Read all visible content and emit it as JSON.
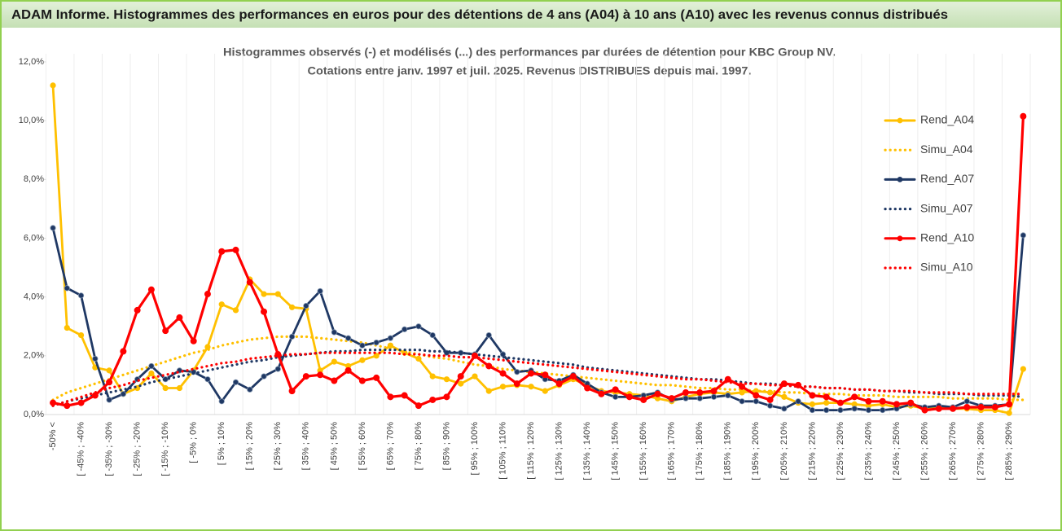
{
  "chart_data": {
    "type": "line",
    "title": "ADAM Informe. Histogrammes des performances en euros pour des détentions de 4 ans (A04) à 10 ans (A10) avec les revenus connus distribués",
    "subtitle": [
      "Histogrammes observés (-) et modélisés (...) des performances par durées de détention pour KBC Group NV.",
      "Cotations entre janv. 1997 et juil. 2025. Revenus DISTRIBUES depuis mai. 1997."
    ],
    "categories": [
      "-50% <",
      null,
      "[ -45% ; -40%",
      null,
      "[ -35% ; -30%",
      null,
      "[ -25% ; -20%",
      null,
      "[ -15% ; -10%",
      null,
      "[ -5% ; 0%",
      null,
      "[ 5% ; 10%",
      null,
      "[ 15% ; 20%",
      null,
      "[ 25% ; 30%",
      null,
      "[ 35% ; 40%",
      null,
      "[ 45% ; 50%",
      null,
      "[ 55% ; 60%",
      null,
      "[ 65% ; 70%",
      null,
      "[ 75% ; 80%",
      null,
      "[ 85% ; 90%",
      null,
      "[ 95% ; 100%",
      null,
      "[ 105% ; 110%",
      null,
      "[ 115% ; 120%",
      null,
      "[ 125% ; 130%",
      null,
      "[ 135% ; 140%",
      null,
      "[ 145% ; 150%",
      null,
      "[ 155% ; 160%",
      null,
      "[ 165% ; 170%",
      null,
      "[ 175% ; 180%",
      null,
      "[ 185% ; 190%",
      null,
      "[ 195% ; 200%",
      null,
      "[ 205% ; 210%",
      null,
      "[ 215% ; 220%",
      null,
      "[ 225% ; 230%",
      null,
      "[ 235% ; 240%",
      null,
      "[ 245% ; 250%",
      null,
      "[ 255% ; 260%",
      null,
      "[ 265% ; 270%",
      null,
      "[ 275% ; 280%",
      null,
      "[ 285% ; 290%",
      null
    ],
    "series": [
      {
        "name": "Rend_A04",
        "color": "#FFC000",
        "style": "solid",
        "marker": true,
        "values": [
          11.2,
          2.95,
          2.7,
          1.6,
          1.5,
          0.7,
          0.9,
          1.4,
          0.9,
          0.9,
          1.5,
          2.3,
          3.75,
          3.55,
          4.6,
          4.1,
          4.1,
          3.65,
          3.6,
          1.5,
          1.8,
          1.65,
          1.85,
          2.0,
          2.35,
          2.1,
          1.9,
          1.3,
          1.2,
          1.05,
          1.3,
          0.8,
          0.95,
          1.0,
          0.95,
          0.8,
          1.0,
          1.2,
          1.0,
          0.8,
          0.75,
          0.7,
          0.65,
          0.55,
          0.45,
          0.6,
          0.7,
          0.75,
          0.7,
          0.75,
          0.8,
          0.75,
          0.6,
          0.4,
          0.35,
          0.4,
          0.4,
          0.35,
          0.3,
          0.35,
          0.25,
          0.3,
          0.2,
          0.25,
          0.2,
          0.2,
          0.15,
          0.15,
          0.05,
          1.55
        ]
      },
      {
        "name": "Simu_A04",
        "color": "#FFC000",
        "style": "dotted",
        "marker": false,
        "values": [
          0.5,
          0.75,
          0.9,
          1.05,
          1.2,
          1.35,
          1.5,
          1.65,
          1.8,
          1.95,
          2.1,
          2.2,
          2.35,
          2.45,
          2.55,
          2.6,
          2.65,
          2.65,
          2.65,
          2.6,
          2.55,
          2.5,
          2.45,
          2.35,
          2.25,
          2.15,
          2.05,
          1.95,
          1.9,
          1.8,
          1.7,
          1.65,
          1.55,
          1.5,
          1.45,
          1.4,
          1.35,
          1.3,
          1.25,
          1.2,
          1.15,
          1.1,
          1.05,
          1.0,
          1.0,
          0.95,
          0.9,
          0.9,
          0.85,
          0.85,
          0.8,
          0.8,
          0.75,
          0.75,
          0.7,
          0.7,
          0.7,
          0.65,
          0.65,
          0.65,
          0.6,
          0.6,
          0.6,
          0.6,
          0.55,
          0.55,
          0.55,
          0.55,
          0.5,
          0.5
        ]
      },
      {
        "name": "Rend_A07",
        "color": "#1F3864",
        "style": "solid",
        "marker": true,
        "values": [
          6.35,
          4.3,
          4.05,
          1.9,
          0.5,
          0.7,
          1.2,
          1.65,
          1.2,
          1.5,
          1.45,
          1.2,
          0.45,
          1.1,
          0.85,
          1.3,
          1.55,
          2.65,
          3.7,
          4.2,
          2.8,
          2.6,
          2.35,
          2.45,
          2.6,
          2.9,
          3.0,
          2.7,
          2.1,
          2.1,
          2.05,
          2.7,
          2.05,
          1.45,
          1.5,
          1.2,
          1.15,
          1.35,
          1.05,
          0.75,
          0.6,
          0.6,
          0.65,
          0.75,
          0.5,
          0.55,
          0.55,
          0.6,
          0.65,
          0.45,
          0.45,
          0.3,
          0.2,
          0.45,
          0.15,
          0.15,
          0.15,
          0.2,
          0.15,
          0.15,
          0.2,
          0.35,
          0.25,
          0.3,
          0.25,
          0.45,
          0.3,
          0.3,
          0.35,
          6.1
        ]
      },
      {
        "name": "Simu_A07",
        "color": "#1F3864",
        "style": "dotted",
        "marker": false,
        "values": [
          0.3,
          0.45,
          0.55,
          0.65,
          0.75,
          0.85,
          0.95,
          1.1,
          1.2,
          1.3,
          1.4,
          1.5,
          1.6,
          1.7,
          1.8,
          1.85,
          1.95,
          2.0,
          2.05,
          2.1,
          2.15,
          2.15,
          2.2,
          2.2,
          2.2,
          2.2,
          2.2,
          2.15,
          2.15,
          2.1,
          2.05,
          2.0,
          1.95,
          1.9,
          1.85,
          1.8,
          1.75,
          1.7,
          1.6,
          1.55,
          1.5,
          1.45,
          1.4,
          1.35,
          1.3,
          1.25,
          1.2,
          1.2,
          1.15,
          1.1,
          1.05,
          1.05,
          1.0,
          0.95,
          0.95,
          0.9,
          0.9,
          0.85,
          0.85,
          0.8,
          0.8,
          0.75,
          0.75,
          0.7,
          0.7,
          0.7,
          0.65,
          0.65,
          0.65,
          0.6
        ]
      },
      {
        "name": "Rend_A10",
        "color": "#FF0000",
        "style": "solid",
        "marker": true,
        "values": [
          0.4,
          0.3,
          0.4,
          0.65,
          1.1,
          2.15,
          3.55,
          4.25,
          2.85,
          3.3,
          2.5,
          4.1,
          5.55,
          5.6,
          4.5,
          3.5,
          2.05,
          0.8,
          1.3,
          1.35,
          1.15,
          1.5,
          1.15,
          1.25,
          0.6,
          0.65,
          0.3,
          0.5,
          0.6,
          1.3,
          2.0,
          1.65,
          1.4,
          1.05,
          1.4,
          1.35,
          1.05,
          1.3,
          0.9,
          0.7,
          0.85,
          0.6,
          0.5,
          0.7,
          0.55,
          0.75,
          0.75,
          0.8,
          1.2,
          0.95,
          0.65,
          0.5,
          1.05,
          1.0,
          0.65,
          0.6,
          0.4,
          0.6,
          0.45,
          0.45,
          0.35,
          0.4,
          0.15,
          0.2,
          0.2,
          0.25,
          0.25,
          0.25,
          0.35,
          10.15
        ]
      },
      {
        "name": "Simu_A10",
        "color": "#FF0000",
        "style": "dotted",
        "marker": false,
        "values": [
          0.3,
          0.45,
          0.6,
          0.75,
          0.9,
          1.0,
          1.15,
          1.25,
          1.35,
          1.45,
          1.55,
          1.65,
          1.75,
          1.8,
          1.9,
          1.95,
          2.0,
          2.05,
          2.05,
          2.1,
          2.1,
          2.1,
          2.1,
          2.1,
          2.1,
          2.05,
          2.05,
          2.0,
          2.0,
          1.95,
          1.95,
          1.9,
          1.85,
          1.8,
          1.75,
          1.7,
          1.65,
          1.6,
          1.55,
          1.5,
          1.45,
          1.4,
          1.35,
          1.3,
          1.25,
          1.2,
          1.2,
          1.15,
          1.1,
          1.05,
          1.05,
          1.0,
          1.0,
          0.95,
          0.95,
          0.9,
          0.9,
          0.85,
          0.85,
          0.8,
          0.8,
          0.8,
          0.75,
          0.75,
          0.75,
          0.7,
          0.7,
          0.7,
          0.7,
          0.7
        ]
      }
    ],
    "ylim": [
      0,
      12
    ],
    "yticks": [
      {
        "value": 0,
        "label": "0,0%"
      },
      {
        "value": 2,
        "label": "2,0%"
      },
      {
        "value": 4,
        "label": "4,0%"
      },
      {
        "value": 6,
        "label": "6,0%"
      },
      {
        "value": 8,
        "label": "8,0%"
      },
      {
        "value": 10,
        "label": "10,0%"
      },
      {
        "value": 12,
        "label": "12,0%"
      }
    ],
    "legend": "right"
  }
}
